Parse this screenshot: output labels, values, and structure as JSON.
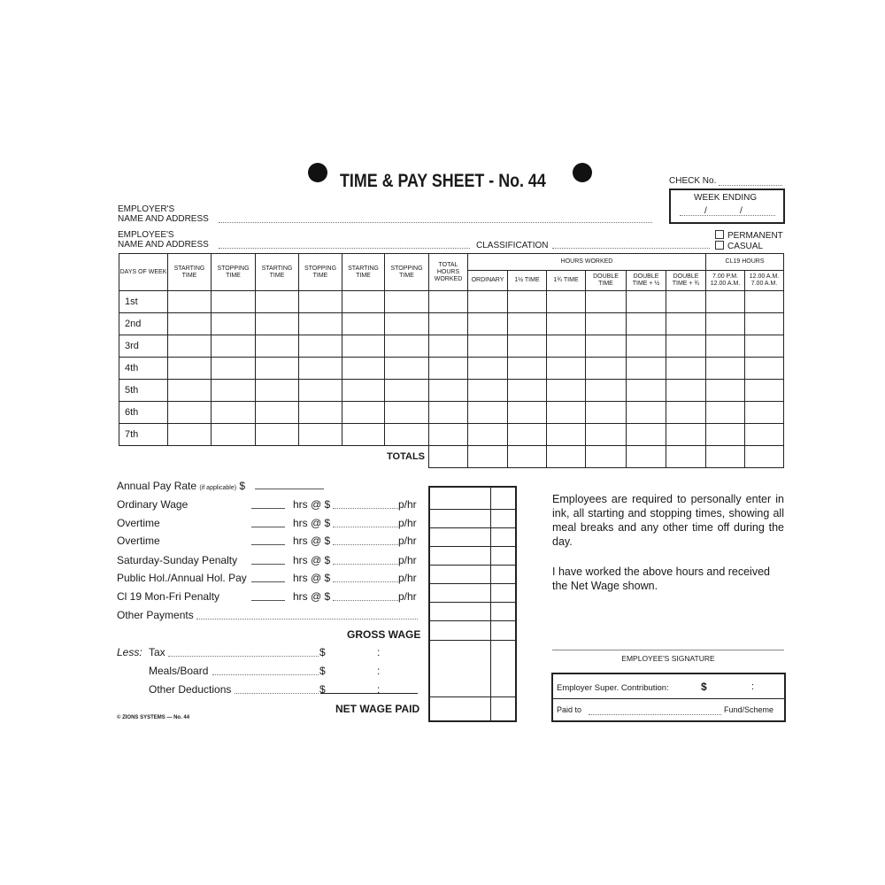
{
  "header": {
    "title": "TIME & PAY SHEET - No. 44",
    "check_no_label": "CHECK No.",
    "week_ending_label": "WEEK ENDING",
    "date_sep": "/"
  },
  "employer": {
    "line1": "EMPLOYER'S",
    "line2": "NAME AND ADDRESS"
  },
  "employee": {
    "line1": "EMPLOYEE'S",
    "line2": "NAME AND ADDRESS"
  },
  "classification_label": "CLASSIFICATION",
  "employment_type": {
    "permanent": "PERMANENT",
    "casual": "CASUAL",
    "permanent_checked": false,
    "casual_checked": false
  },
  "table": {
    "columns": [
      "DAYS OF WEEK",
      "STARTING TIME",
      "STOPPING TIME",
      "STARTING TIME",
      "STOPPING TIME",
      "STARTING TIME",
      "STOPPING TIME",
      "TOTAL HOURS WORKED"
    ],
    "hours_worked_label": "HOURS WORKED",
    "hours_worked_columns": [
      "ORDINARY",
      "1½ TIME",
      "1¾ TIME",
      "DOUBLE TIME",
      "DOUBLE TIME + ½",
      "DOUBLE TIME + ¾"
    ],
    "cl19_label": "CL19 HOURS",
    "cl19_columns": [
      "7.00 P.M. 12.00 A.M.",
      "12.00 A.M. 7.00 A.M."
    ],
    "days": [
      "1st",
      "2nd",
      "3rd",
      "4th",
      "5th",
      "6th",
      "7th"
    ],
    "totals_label": "TOTALS"
  },
  "pay": {
    "annual_rate": "Annual Pay Rate",
    "annual_rate_note": "(if applicable)",
    "currency": "$",
    "rows": [
      "Ordinary Wage",
      "Overtime",
      "Overtime",
      "Saturday-Sunday Penalty",
      "Public Hol./Annual Hol. Pay",
      "Cl 19 Mon-Fri Penalty"
    ],
    "hrs_at": "hrs @ $",
    "per_hour": "p/hr",
    "other_payments": "Other Payments",
    "gross_wage": "GROSS WAGE",
    "less_label": "Less:",
    "deductions": [
      "Tax",
      "Meals/Board",
      "Other Deductions"
    ],
    "colon": ":",
    "net_wage": "NET WAGE PAID"
  },
  "notice": {
    "p1": "Employees are required to personally enter in ink, all starting and stopping times, showing all meal breaks and any other time off during the day.",
    "p2": "I have worked the above hours and received the Net Wage shown."
  },
  "signature_label": "EMPLOYEE'S SIGNATURE",
  "super": {
    "label": "Employer Super. Contribution:",
    "currency": "$",
    "colon": ":",
    "paid_to": "Paid to",
    "fund": "Fund/Scheme"
  },
  "footer": "© ZIONS SYSTEMS — No. 44"
}
